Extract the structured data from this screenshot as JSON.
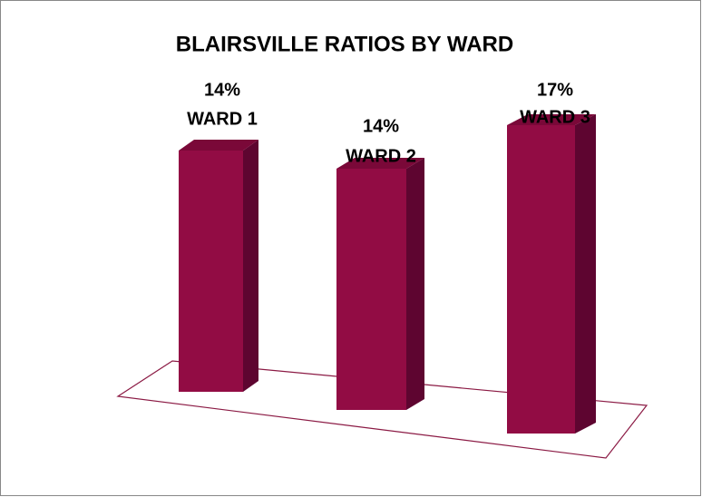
{
  "chart_data": {
    "type": "bar3d",
    "title": "BLAIRSVILLE RATIOS BY WARD",
    "categories": [
      "WARD 1",
      "WARD 2",
      "WARD 3"
    ],
    "values": [
      14,
      14,
      17
    ],
    "value_labels": [
      "14%",
      "14%",
      "17%"
    ],
    "color": "#920c44"
  }
}
